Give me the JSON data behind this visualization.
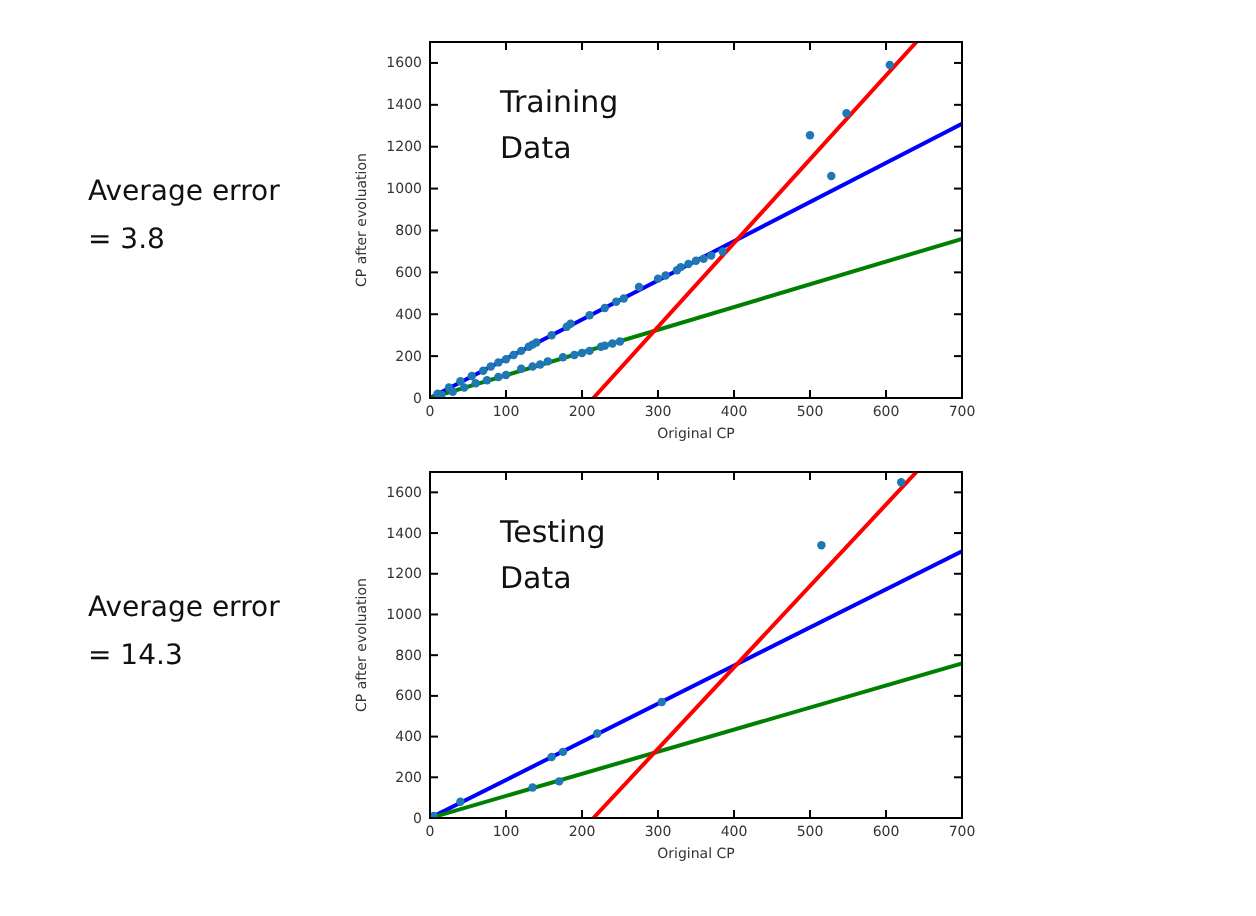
{
  "chart_data": [
    {
      "type": "scatter",
      "title": "Training Data",
      "xlabel": "Original CP",
      "ylabel": "CP after evoluation",
      "annotations": [
        "Average error = 3.8"
      ],
      "xlim": [
        0,
        700
      ],
      "ylim": [
        0,
        1700
      ],
      "xticks": [
        0,
        100,
        200,
        300,
        400,
        500,
        600,
        700
      ],
      "yticks": [
        0,
        200,
        400,
        600,
        800,
        1000,
        1200,
        1400,
        1600
      ],
      "grid": false,
      "series": [
        {
          "marker": "circle",
          "color": "#1f77b4",
          "x": [
            10,
            25,
            40,
            55,
            70,
            80,
            90,
            100,
            110,
            120,
            130,
            135,
            140,
            160,
            180,
            185,
            210,
            230,
            245,
            255,
            275,
            300,
            310,
            325,
            330,
            340,
            350,
            360,
            370,
            385,
            500,
            528,
            548,
            605,
            15,
            30,
            45,
            60,
            75,
            90,
            100,
            120,
            135,
            145,
            155,
            175,
            190,
            200,
            210,
            225,
            230,
            240,
            250
          ],
          "values": [
            20,
            50,
            80,
            105,
            130,
            150,
            170,
            185,
            205,
            225,
            245,
            255,
            265,
            300,
            340,
            355,
            395,
            430,
            460,
            475,
            530,
            570,
            585,
            610,
            625,
            640,
            655,
            665,
            680,
            700,
            1255,
            1060,
            1360,
            1590,
            15,
            30,
            50,
            70,
            85,
            100,
            110,
            140,
            150,
            160,
            175,
            195,
            205,
            215,
            225,
            245,
            250,
            260,
            270
          ]
        },
        {
          "type": "line",
          "color": "#0000ff",
          "x": [
            0,
            700
          ],
          "values": [
            0,
            1310
          ]
        },
        {
          "type": "line",
          "color": "#008000",
          "x": [
            0,
            700
          ],
          "values": [
            0,
            760
          ]
        },
        {
          "type": "line",
          "color": "#ff0000",
          "x": [
            215,
            640
          ],
          "values": [
            0,
            1700
          ]
        }
      ]
    },
    {
      "type": "scatter",
      "title": "Testing Data",
      "xlabel": "Original CP",
      "ylabel": "CP after evoluation",
      "annotations": [
        "Average error = 14.3"
      ],
      "xlim": [
        0,
        700
      ],
      "ylim": [
        0,
        1700
      ],
      "xticks": [
        0,
        100,
        200,
        300,
        400,
        500,
        600,
        700
      ],
      "yticks": [
        0,
        200,
        400,
        600,
        800,
        1000,
        1200,
        1400,
        1600
      ],
      "grid": false,
      "series": [
        {
          "marker": "circle",
          "color": "#1f77b4",
          "x": [
            5,
            40,
            135,
            160,
            170,
            175,
            220,
            305,
            515,
            620
          ],
          "values": [
            10,
            80,
            150,
            300,
            180,
            325,
            415,
            570,
            1340,
            1650
          ]
        },
        {
          "type": "line",
          "color": "#0000ff",
          "x": [
            0,
            700
          ],
          "values": [
            0,
            1310
          ]
        },
        {
          "type": "line",
          "color": "#008000",
          "x": [
            0,
            700
          ],
          "values": [
            0,
            760
          ]
        },
        {
          "type": "line",
          "color": "#ff0000",
          "x": [
            215,
            640
          ],
          "values": [
            0,
            1700
          ]
        }
      ]
    }
  ]
}
